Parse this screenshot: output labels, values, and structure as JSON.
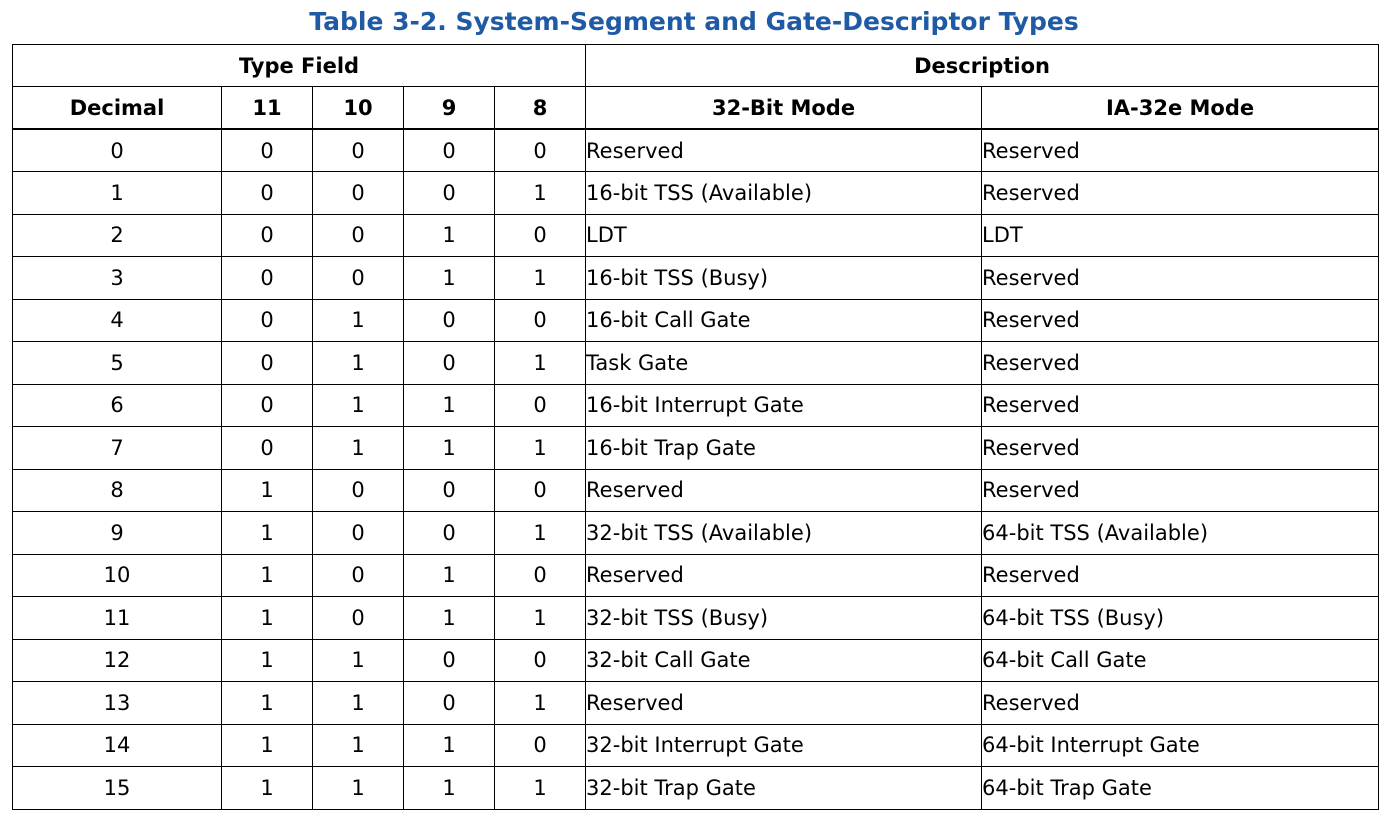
{
  "title": "Table 3-2.  System-Segment and Gate-Descriptor Types",
  "accent_color": "#1f5aa5",
  "header": {
    "type_field": "Type Field",
    "description": "Description",
    "columns": [
      "Decimal",
      "11",
      "10",
      "9",
      "8",
      "32-Bit Mode",
      "IA-32e Mode"
    ]
  },
  "rows": [
    {
      "decimal": "0",
      "b11": "0",
      "b10": "0",
      "b9": "0",
      "b8": "0",
      "mode32": "Reserved",
      "ia32e": "Reserved"
    },
    {
      "decimal": "1",
      "b11": "0",
      "b10": "0",
      "b9": "0",
      "b8": "1",
      "mode32": "16-bit TSS (Available)",
      "ia32e": "Reserved"
    },
    {
      "decimal": "2",
      "b11": "0",
      "b10": "0",
      "b9": "1",
      "b8": "0",
      "mode32": "LDT",
      "ia32e": "LDT"
    },
    {
      "decimal": "3",
      "b11": "0",
      "b10": "0",
      "b9": "1",
      "b8": "1",
      "mode32": "16-bit TSS (Busy)",
      "ia32e": "Reserved"
    },
    {
      "decimal": "4",
      "b11": "0",
      "b10": "1",
      "b9": "0",
      "b8": "0",
      "mode32": "16-bit Call Gate",
      "ia32e": "Reserved"
    },
    {
      "decimal": "5",
      "b11": "0",
      "b10": "1",
      "b9": "0",
      "b8": "1",
      "mode32": "Task Gate",
      "ia32e": "Reserved"
    },
    {
      "decimal": "6",
      "b11": "0",
      "b10": "1",
      "b9": "1",
      "b8": "0",
      "mode32": "16-bit Interrupt Gate",
      "ia32e": "Reserved"
    },
    {
      "decimal": "7",
      "b11": "0",
      "b10": "1",
      "b9": "1",
      "b8": "1",
      "mode32": "16-bit Trap Gate",
      "ia32e": "Reserved"
    },
    {
      "decimal": "8",
      "b11": "1",
      "b10": "0",
      "b9": "0",
      "b8": "0",
      "mode32": "Reserved",
      "ia32e": "Reserved"
    },
    {
      "decimal": "9",
      "b11": "1",
      "b10": "0",
      "b9": "0",
      "b8": "1",
      "mode32": "32-bit TSS (Available)",
      "ia32e": "64-bit TSS (Available)"
    },
    {
      "decimal": "10",
      "b11": "1",
      "b10": "0",
      "b9": "1",
      "b8": "0",
      "mode32": "Reserved",
      "ia32e": "Reserved"
    },
    {
      "decimal": "11",
      "b11": "1",
      "b10": "0",
      "b9": "1",
      "b8": "1",
      "mode32": "32-bit TSS (Busy)",
      "ia32e": "64-bit TSS (Busy)"
    },
    {
      "decimal": "12",
      "b11": "1",
      "b10": "1",
      "b9": "0",
      "b8": "0",
      "mode32": "32-bit Call Gate",
      "ia32e": "64-bit Call Gate"
    },
    {
      "decimal": "13",
      "b11": "1",
      "b10": "1",
      "b9": "0",
      "b8": "1",
      "mode32": "Reserved",
      "ia32e": "Reserved"
    },
    {
      "decimal": "14",
      "b11": "1",
      "b10": "1",
      "b9": "1",
      "b8": "0",
      "mode32": "32-bit Interrupt Gate",
      "ia32e": "64-bit Interrupt Gate"
    },
    {
      "decimal": "15",
      "b11": "1",
      "b10": "1",
      "b9": "1",
      "b8": "1",
      "mode32": "32-bit Trap Gate",
      "ia32e": "64-bit Trap Gate"
    }
  ]
}
